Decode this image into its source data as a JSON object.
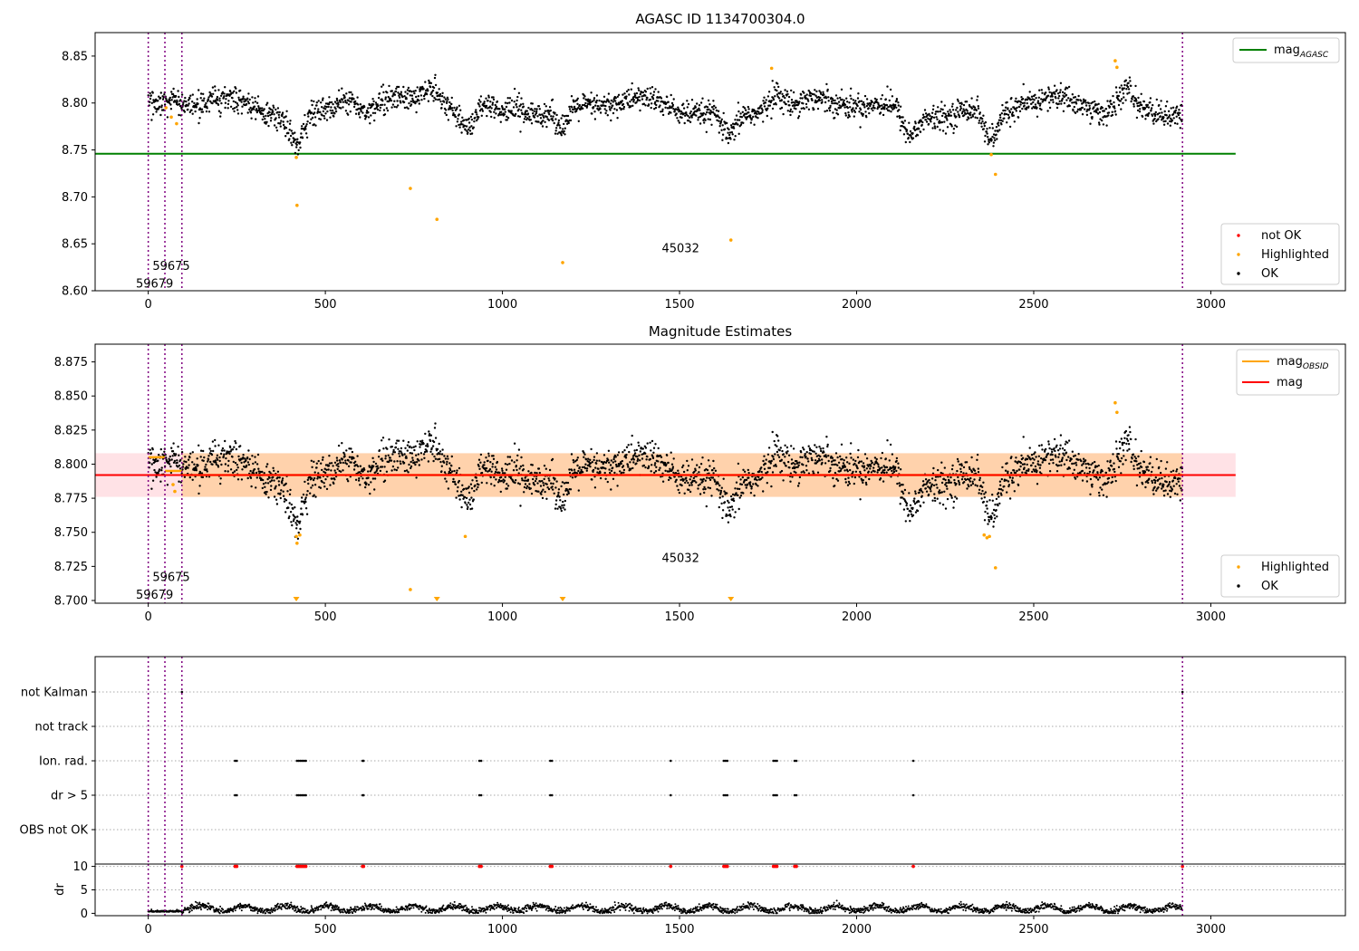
{
  "chart_data": [
    {
      "type": "scatter",
      "title": "AGASC ID 1134700304.0",
      "xlabel": "",
      "ylabel": "",
      "xlim": [
        -150,
        3380
      ],
      "ylim": [
        8.6,
        8.875
      ],
      "xticks": [
        0,
        500,
        1000,
        1500,
        2000,
        2500,
        3000
      ],
      "xtick_labels": [
        "0",
        "500",
        "1000",
        "1500",
        "2000",
        "2500",
        "3000"
      ],
      "yticks": [
        8.6,
        8.65,
        8.7,
        8.75,
        8.8,
        8.85
      ],
      "ytick_labels": [
        "8.60",
        "8.65",
        "8.70",
        "8.75",
        "8.80",
        "8.85"
      ],
      "grid": false,
      "reference_line": {
        "name": "mag_AGASC",
        "y": 8.746,
        "x_range": [
          -150,
          3070
        ],
        "color": "#008000"
      },
      "obsid_boundaries": [
        0,
        47,
        95,
        2920
      ],
      "obsid_labels": [
        {
          "text": "59679",
          "x": -35,
          "y": 8.607
        },
        {
          "text": "59675",
          "x": 12,
          "y": 8.626
        },
        {
          "text": "45032",
          "x": 1450,
          "y": 8.645
        }
      ],
      "ok_trend": {
        "baseline": 8.795,
        "amplitude": 0.012,
        "noise": 0.011,
        "dips": [
          [
            420,
            0.032
          ],
          [
            900,
            0.022
          ],
          [
            1170,
            0.022
          ],
          [
            1640,
            0.028
          ],
          [
            2150,
            0.026
          ],
          [
            2380,
            0.036
          ]
        ],
        "bumps": [
          [
            560,
            0.016
          ],
          [
            800,
            0.02
          ],
          [
            1040,
            0.012
          ],
          [
            1770,
            0.02
          ],
          [
            2760,
            0.022
          ]
        ],
        "x_range": [
          0,
          2920
        ],
        "n_points": 2600
      },
      "series": [
        {
          "name": "Highlighted",
          "color": "#ffa500",
          "x": [
            50,
            65,
            80,
            418,
            420,
            740,
            815,
            1170,
            1645,
            1760,
            2380,
            2392,
            2730,
            2735
          ],
          "y": [
            8.795,
            8.785,
            8.778,
            8.742,
            8.691,
            8.709,
            8.676,
            8.63,
            8.654,
            8.837,
            8.745,
            8.724,
            8.845,
            8.838
          ]
        }
      ],
      "legend": {
        "position": "top-right",
        "entries": [
          {
            "label": "mag",
            "subscript": "AGASC",
            "color": "#008000"
          }
        ]
      },
      "legend2": {
        "position": "bottom-right",
        "entries": [
          {
            "label": "not OK",
            "color": "#ff0000"
          },
          {
            "label": "Highlighted",
            "color": "#ffa500"
          },
          {
            "label": "OK",
            "color": "#000000"
          }
        ]
      }
    },
    {
      "type": "scatter",
      "title": "Magnitude Estimates",
      "xlabel": "",
      "ylabel": "",
      "xlim": [
        -150,
        3380
      ],
      "ylim": [
        8.698,
        8.888
      ],
      "xticks": [
        0,
        500,
        1000,
        1500,
        2000,
        2500,
        3000
      ],
      "xtick_labels": [
        "0",
        "500",
        "1000",
        "1500",
        "2000",
        "2500",
        "3000"
      ],
      "yticks": [
        8.7,
        8.725,
        8.75,
        8.775,
        8.8,
        8.825,
        8.85,
        8.875
      ],
      "ytick_labels": [
        "8.700",
        "8.725",
        "8.750",
        "8.775",
        "8.800",
        "8.825",
        "8.850",
        "8.875"
      ],
      "grid": false,
      "mag_line": {
        "name": "mag",
        "y": 8.792,
        "band": [
          8.776,
          8.808
        ],
        "x_range": [
          -150,
          3070
        ],
        "color": "#ff0000"
      },
      "obsid_mag_segments": [
        {
          "x0": 0,
          "x1": 47,
          "y": 8.805
        },
        {
          "x0": 47,
          "x1": 95,
          "y": 8.795
        },
        {
          "x0": 95,
          "x1": 2920,
          "y": 8.792
        }
      ],
      "obsid_boundaries": [
        0,
        47,
        95,
        2920
      ],
      "obsid_labels": [
        {
          "text": "59679",
          "x": -35,
          "y": 8.704
        },
        {
          "text": "59675",
          "x": 12,
          "y": 8.717
        },
        {
          "text": "45032",
          "x": 1450,
          "y": 8.731
        }
      ],
      "series": [
        {
          "name": "Highlighted",
          "color": "#ffa500",
          "x": [
            70,
            75,
            418,
            420,
            428,
            740,
            895,
            2360,
            2368,
            2375,
            2392,
            2730,
            2735
          ],
          "y": [
            8.785,
            8.78,
            8.747,
            8.742,
            8.748,
            8.708,
            8.747,
            8.748,
            8.746,
            8.747,
            8.724,
            8.845,
            8.838
          ]
        }
      ],
      "offscale_markers": {
        "x": [
          418,
          815,
          1170,
          1645
        ],
        "y": 8.7,
        "color": "#ffa500"
      },
      "legend": {
        "position": "top-right",
        "entries": [
          {
            "label": "mag",
            "subscript": "OBSID",
            "color": "#ffa500"
          },
          {
            "label": "mag",
            "color": "#ff0000"
          }
        ]
      },
      "legend2": {
        "position": "bottom-right",
        "entries": [
          {
            "label": "Highlighted",
            "color": "#ffa500"
          },
          {
            "label": "OK",
            "color": "#000000"
          }
        ]
      }
    },
    {
      "type": "scatter",
      "title": "",
      "xlabel": "",
      "ylabel": "",
      "xlim": [
        -150,
        3380
      ],
      "flag_rows": [
        "not Kalman",
        "not track",
        "Ion. rad.",
        "dr > 5",
        "OBS not OK"
      ],
      "flag_events": {
        "not Kalman": [
          95,
          2920
        ],
        "not track": [],
        "Ion. rad.": [
          245,
          250,
          420,
          425,
          430,
          435,
          440,
          445,
          605,
          608,
          935,
          940,
          1135,
          1140,
          1475,
          1625,
          1630,
          1635,
          1765,
          1770,
          1775,
          1825,
          1830,
          2160
        ],
        "dr > 5": [
          245,
          250,
          420,
          425,
          430,
          435,
          440,
          445,
          605,
          608,
          935,
          940,
          1135,
          1140,
          1475,
          1625,
          1630,
          1635,
          1765,
          1770,
          1775,
          1825,
          1830,
          2160
        ],
        "OBS not OK": []
      },
      "obsid_boundaries": [
        0,
        47,
        95,
        2920
      ],
      "xticks": [
        0,
        500,
        1000,
        1500,
        2000,
        2500,
        3000
      ],
      "xtick_labels": [
        "0",
        "500",
        "1000",
        "1500",
        "2000",
        "2500",
        "3000"
      ]
    },
    {
      "type": "scatter",
      "title": "",
      "xlabel": "",
      "ylabel": "dr",
      "xlim": [
        -150,
        3380
      ],
      "ylim": [
        -0.5,
        10.5
      ],
      "yticks": [
        0,
        5,
        10
      ],
      "ytick_labels": [
        "0",
        "5",
        "10"
      ],
      "xticks": [
        0,
        500,
        1000,
        1500,
        2000,
        2500,
        3000
      ],
      "xtick_labels": [
        "0",
        "500",
        "1000",
        "1500",
        "2000",
        "2500",
        "3000"
      ],
      "dr_clip": 10,
      "dr_clipped_x": [
        95,
        245,
        250,
        420,
        425,
        430,
        435,
        440,
        445,
        605,
        608,
        935,
        940,
        1135,
        1140,
        1475,
        1625,
        1630,
        1635,
        1765,
        1770,
        1775,
        1825,
        1830,
        2160,
        2920
      ],
      "dr_trend": {
        "baseline": 1.0,
        "wobble": 0.6,
        "noise": 0.35,
        "low_region": [
          0,
          95,
          0.3
        ],
        "x_range": [
          0,
          2920
        ],
        "n_points": 2600
      },
      "obsid_boundaries": [
        0,
        47,
        95,
        2920
      ]
    }
  ]
}
